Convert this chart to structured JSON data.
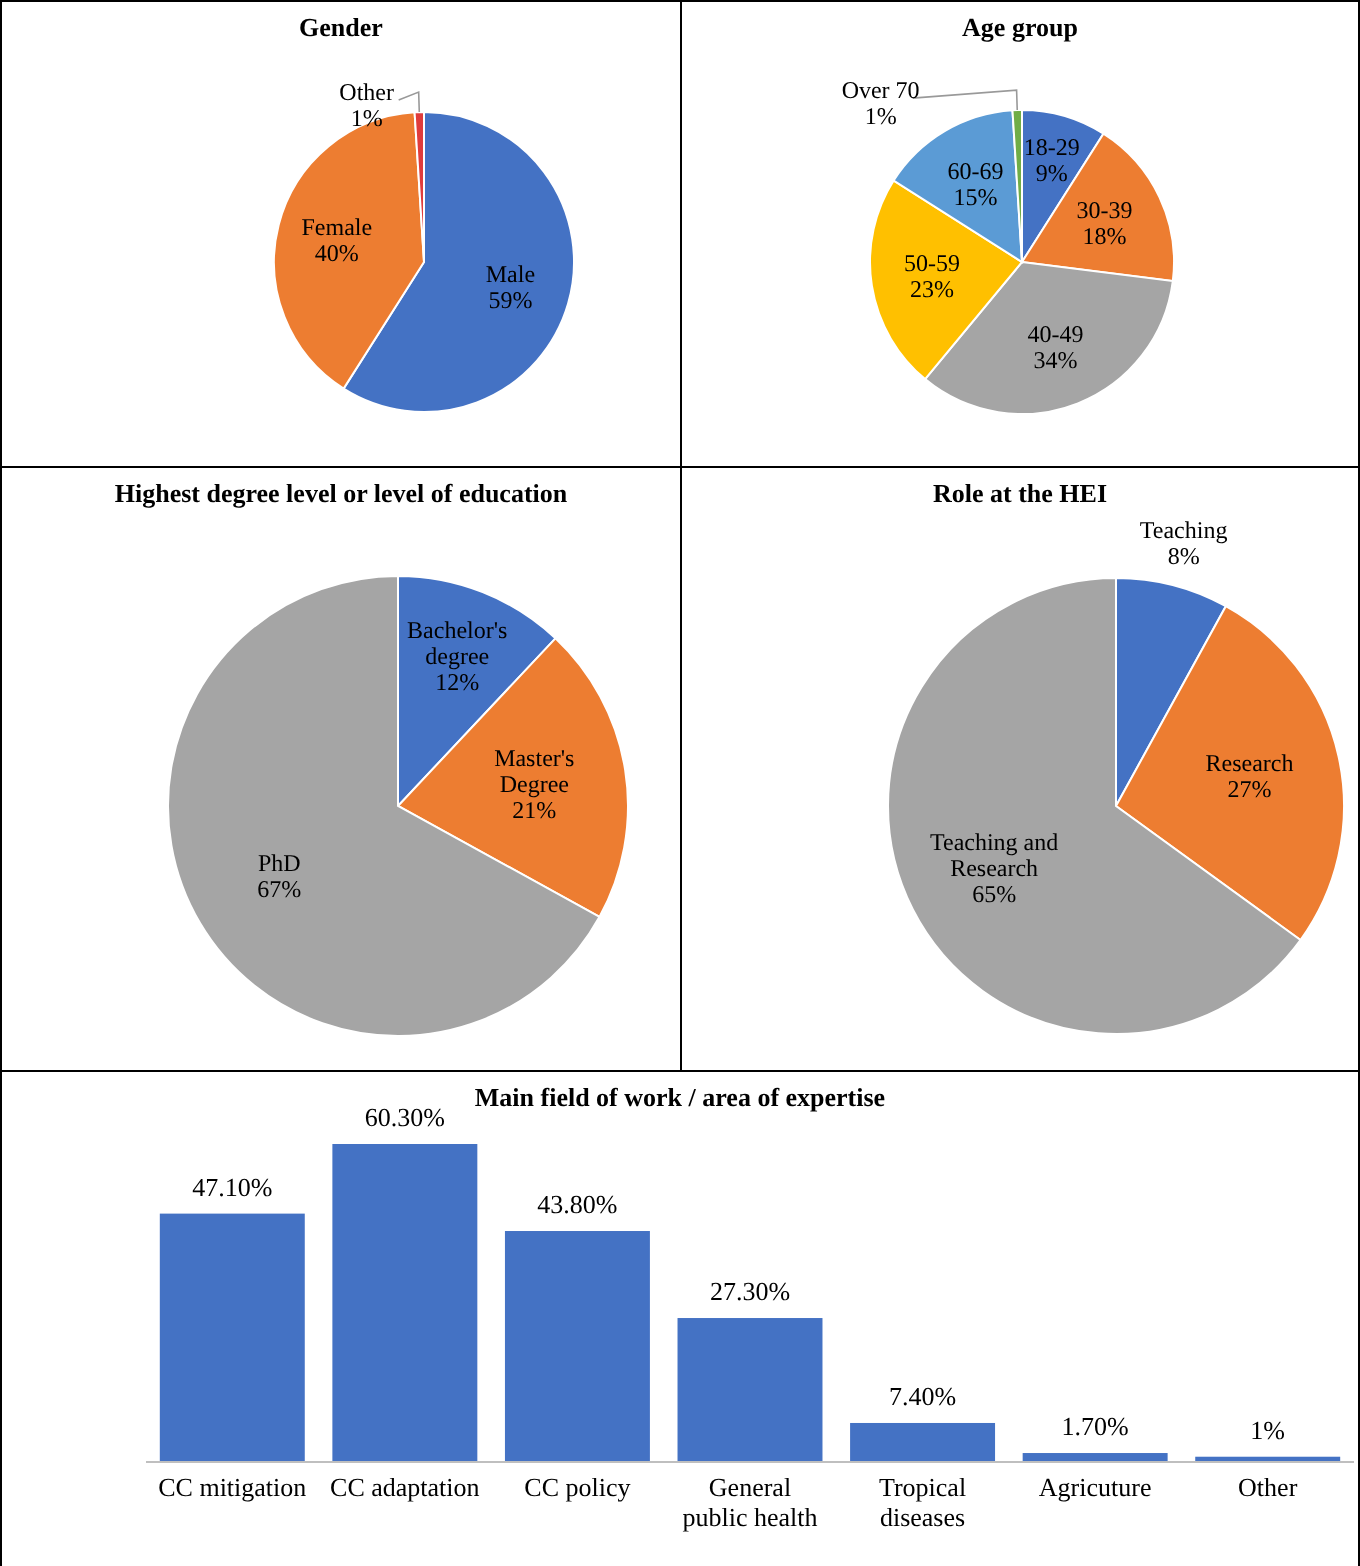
{
  "chart_data": [
    {
      "type": "pie",
      "title": "Gender",
      "categories": [
        "Male",
        "Female",
        "Other"
      ],
      "values": [
        59,
        40,
        1
      ],
      "colors": [
        "#4472c4",
        "#ed7d31",
        "#e03c3c"
      ],
      "value_labels": [
        "59%",
        "40%",
        "1%"
      ]
    },
    {
      "type": "pie",
      "title": "Age group",
      "categories": [
        "18-29",
        "30-39",
        "40-49",
        "50-59",
        "60-69",
        "Over 70"
      ],
      "values": [
        9,
        18,
        34,
        23,
        15,
        1
      ],
      "colors": [
        "#4472c4",
        "#ed7d31",
        "#a5a5a5",
        "#ffc000",
        "#5b9bd5",
        "#70ad47"
      ],
      "value_labels": [
        "9%",
        "18%",
        "34%",
        "23%",
        "15%",
        "1%"
      ]
    },
    {
      "type": "pie",
      "title": "Highest degree level or level of education",
      "categories": [
        "Bachelor's degree",
        "Master's Degree",
        "PhD"
      ],
      "values": [
        12,
        21,
        67
      ],
      "colors": [
        "#4472c4",
        "#ed7d31",
        "#a5a5a5"
      ],
      "value_labels": [
        "12%",
        "21%",
        "67%"
      ]
    },
    {
      "type": "pie",
      "title": "Role at the HEI",
      "categories": [
        "Teaching",
        "Research",
        "Teaching and Research"
      ],
      "values": [
        8,
        27,
        65
      ],
      "colors": [
        "#4472c4",
        "#ed7d31",
        "#a5a5a5"
      ],
      "value_labels": [
        "8%",
        "27%",
        "65%"
      ]
    },
    {
      "type": "bar",
      "title": "Main field of work / area of expertise",
      "categories": [
        "CC mitigation",
        "CC adaptation",
        "CC policy",
        "General public health",
        "Tropical diseases",
        "Agricuture",
        "Other"
      ],
      "values": [
        47.1,
        60.3,
        43.8,
        27.3,
        7.4,
        1.7,
        1
      ],
      "color": "#4472c4",
      "value_labels": [
        "47.10%",
        "60.30%",
        "43.80%",
        "27.30%",
        "7.40%",
        "1.70%",
        "1%"
      ]
    }
  ]
}
